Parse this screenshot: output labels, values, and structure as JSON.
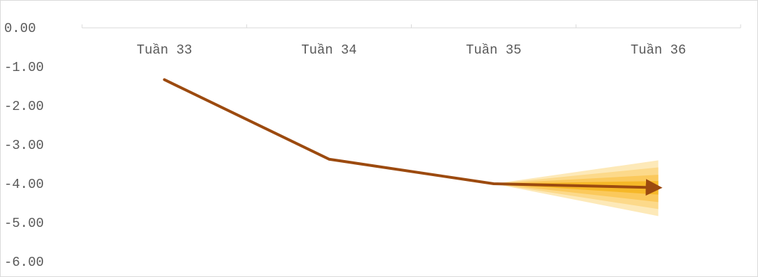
{
  "chart_data": {
    "type": "line",
    "title": "",
    "xlabel": "",
    "ylabel": "",
    "categories": [
      "Tuần 33",
      "Tuần 34",
      "Tuần 35",
      "Tuần 36"
    ],
    "y_ticks": [
      "0.00",
      "-1.00",
      "-2.00",
      "-3.00",
      "-4.00",
      "-5.00",
      "-6.00"
    ],
    "ylim": [
      -6,
      0
    ],
    "x_axis_position": "top",
    "grid": false,
    "series": [
      {
        "values": [
          -1.33,
          -3.37,
          -4.0,
          -4.1
        ],
        "color": "#9c4a0f"
      }
    ],
    "forecast_fan": {
      "from_category": "Tuần 35",
      "to_category": "Tuần 36",
      "start_value": -4.0,
      "bands": [
        {
          "low": -4.83,
          "high": -3.4,
          "color": "#fde9b8"
        },
        {
          "low": -4.65,
          "high": -3.58,
          "color": "#fcd98a"
        },
        {
          "low": -4.47,
          "high": -3.77,
          "color": "#fbc95c"
        },
        {
          "low": -4.28,
          "high": -3.93,
          "color": "#f6b828"
        }
      ]
    }
  }
}
